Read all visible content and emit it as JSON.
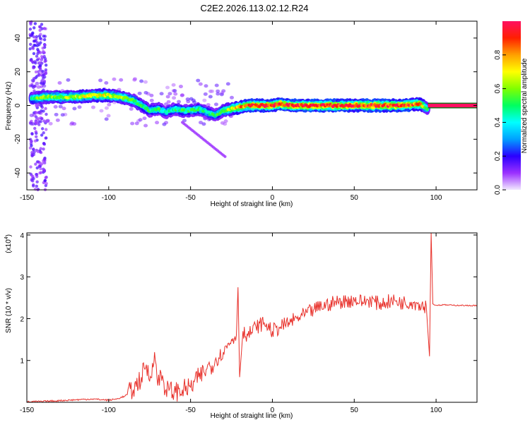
{
  "title": "C2E2.2026.113.02.12.R24",
  "colors": {
    "snr_line": "#e8302a",
    "axis": "#000000",
    "spectrum_strip": "#1a6b1a",
    "background": "#ffffff"
  },
  "chart_data": [
    {
      "type": "heatmap",
      "xlabel": "Height of straight line (km)",
      "ylabel": "Frequency (Hz)",
      "xlim": [
        -150,
        125
      ],
      "ylim": [
        -50,
        50
      ],
      "x_ticks": [
        "-150",
        "-100",
        "-50",
        "0",
        "50",
        "100"
      ],
      "x_tick_values": [
        -150,
        -100,
        -50,
        0,
        50,
        100
      ],
      "y_ticks": [
        "-40",
        "-20",
        "0",
        "20",
        "40"
      ],
      "y_tick_values": [
        -40,
        -20,
        0,
        20,
        40
      ],
      "colorbar": {
        "label": "Normalized spectral amplitude",
        "range": [
          0,
          1
        ],
        "ticks": [
          "0.0",
          "0.2",
          "0.4",
          "0.6",
          "0.8"
        ],
        "tick_values": [
          0,
          0.2,
          0.4,
          0.6,
          0.8
        ],
        "colors": [
          "#f2eaff",
          "#9b30ff",
          "#2a00ff",
          "#00a0ff",
          "#00ffff",
          "#00ff60",
          "#80ff00",
          "#ffff00",
          "#ffa000",
          "#ff2000",
          "#ff1060"
        ]
      },
      "ridge": {
        "x": [
          -147,
          -140,
          -130,
          -120,
          -110,
          -100,
          -92,
          -85,
          -80,
          -75,
          -70,
          -65,
          -60,
          -55,
          -50,
          -45,
          -40,
          -35,
          -30,
          -25,
          -20,
          -15,
          -10,
          -5,
          0,
          5,
          10,
          20,
          30,
          40,
          50,
          60,
          70,
          80,
          90,
          95
        ],
        "y": [
          4,
          5,
          5,
          5,
          6,
          6,
          5,
          3,
          0,
          -3,
          -2,
          -4,
          -2,
          -3,
          -3,
          -2,
          -4,
          -6,
          -3,
          -2,
          -1,
          0,
          0,
          0,
          0,
          1,
          0,
          0,
          0,
          0,
          0,
          0,
          0,
          0,
          1,
          -2
        ],
        "amp": [
          0.5,
          0.6,
          0.62,
          0.65,
          0.68,
          0.7,
          0.6,
          0.55,
          0.5,
          0.48,
          0.5,
          0.45,
          0.5,
          0.52,
          0.48,
          0.5,
          0.45,
          0.48,
          0.55,
          0.7,
          0.8,
          0.85,
          0.9,
          0.92,
          0.9,
          0.92,
          0.9,
          0.92,
          0.93,
          0.92,
          0.9,
          0.92,
          0.9,
          0.92,
          0.8,
          0.5
        ]
      },
      "tone": {
        "x_start": 95,
        "x_end": 125,
        "y": 0,
        "amp": 1.0
      }
    },
    {
      "type": "line",
      "xlabel": "Height of straight line (km)",
      "ylabel": "SNR (10 * v/v)",
      "y_multiplier_label": "(x10",
      "y_multiplier_exponent": "4",
      "y_multiplier_close": ")",
      "xlim": [
        -150,
        125
      ],
      "ylim": [
        0,
        4.05
      ],
      "x_ticks": [
        "-150",
        "-100",
        "-50",
        "0",
        "50",
        "100"
      ],
      "x_tick_values": [
        -150,
        -100,
        -50,
        0,
        50,
        100
      ],
      "y_ticks": [
        "1",
        "2",
        "3",
        "4"
      ],
      "y_tick_values": [
        1,
        2,
        3,
        4
      ],
      "series": [
        {
          "x": [
            -150,
            -140,
            -130,
            -120,
            -110,
            -100,
            -95,
            -90,
            -85,
            -80,
            -77,
            -75,
            -72,
            -70,
            -68,
            -65,
            -60,
            -55,
            -50,
            -45,
            -40,
            -35,
            -30,
            -25,
            -22,
            -21,
            -20,
            -18,
            -15,
            -10,
            -5,
            0,
            5,
            10,
            15,
            20,
            25,
            30,
            35,
            40,
            45,
            50,
            55,
            60,
            65,
            70,
            75,
            80,
            85,
            90,
            94,
            96,
            97,
            98,
            100,
            105,
            110,
            115,
            120,
            125
          ],
          "y": [
            0.01,
            0.02,
            0.04,
            0.06,
            0.08,
            0.05,
            0.08,
            0.15,
            0.3,
            0.6,
            0.9,
            0.5,
            1.2,
            0.4,
            0.7,
            0.3,
            0.25,
            0.3,
            0.35,
            0.6,
            0.8,
            1.0,
            1.2,
            1.5,
            1.6,
            2.75,
            0.6,
            1.7,
            1.6,
            1.8,
            1.9,
            1.7,
            1.8,
            1.9,
            2.0,
            2.1,
            2.2,
            2.3,
            2.35,
            2.4,
            2.42,
            2.45,
            2.4,
            2.45,
            2.35,
            2.4,
            2.42,
            2.38,
            2.4,
            2.35,
            2.3,
            1.1,
            4.05,
            2.35,
            2.32,
            2.33,
            2.32,
            2.32,
            2.31,
            2.32
          ]
        }
      ]
    }
  ]
}
